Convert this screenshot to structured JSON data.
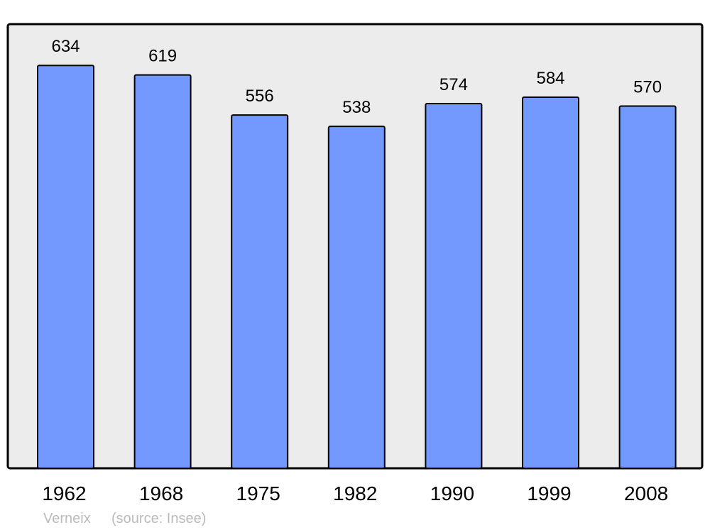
{
  "chart_data": {
    "type": "bar",
    "categories": [
      "1962",
      "1968",
      "1975",
      "1982",
      "1990",
      "1999",
      "2008"
    ],
    "values": [
      634,
      619,
      556,
      538,
      574,
      584,
      570
    ],
    "title": "",
    "xlabel": "",
    "ylabel": "",
    "ylim": [
      0,
      699
    ],
    "grid": false,
    "data_labels": true,
    "colors": {
      "bar": "#7399ff",
      "background": "#ececec",
      "border": "#000000",
      "footer": "#bbbbbb"
    }
  },
  "footer": {
    "place": "Verneix",
    "source": "(source: Insee)"
  }
}
